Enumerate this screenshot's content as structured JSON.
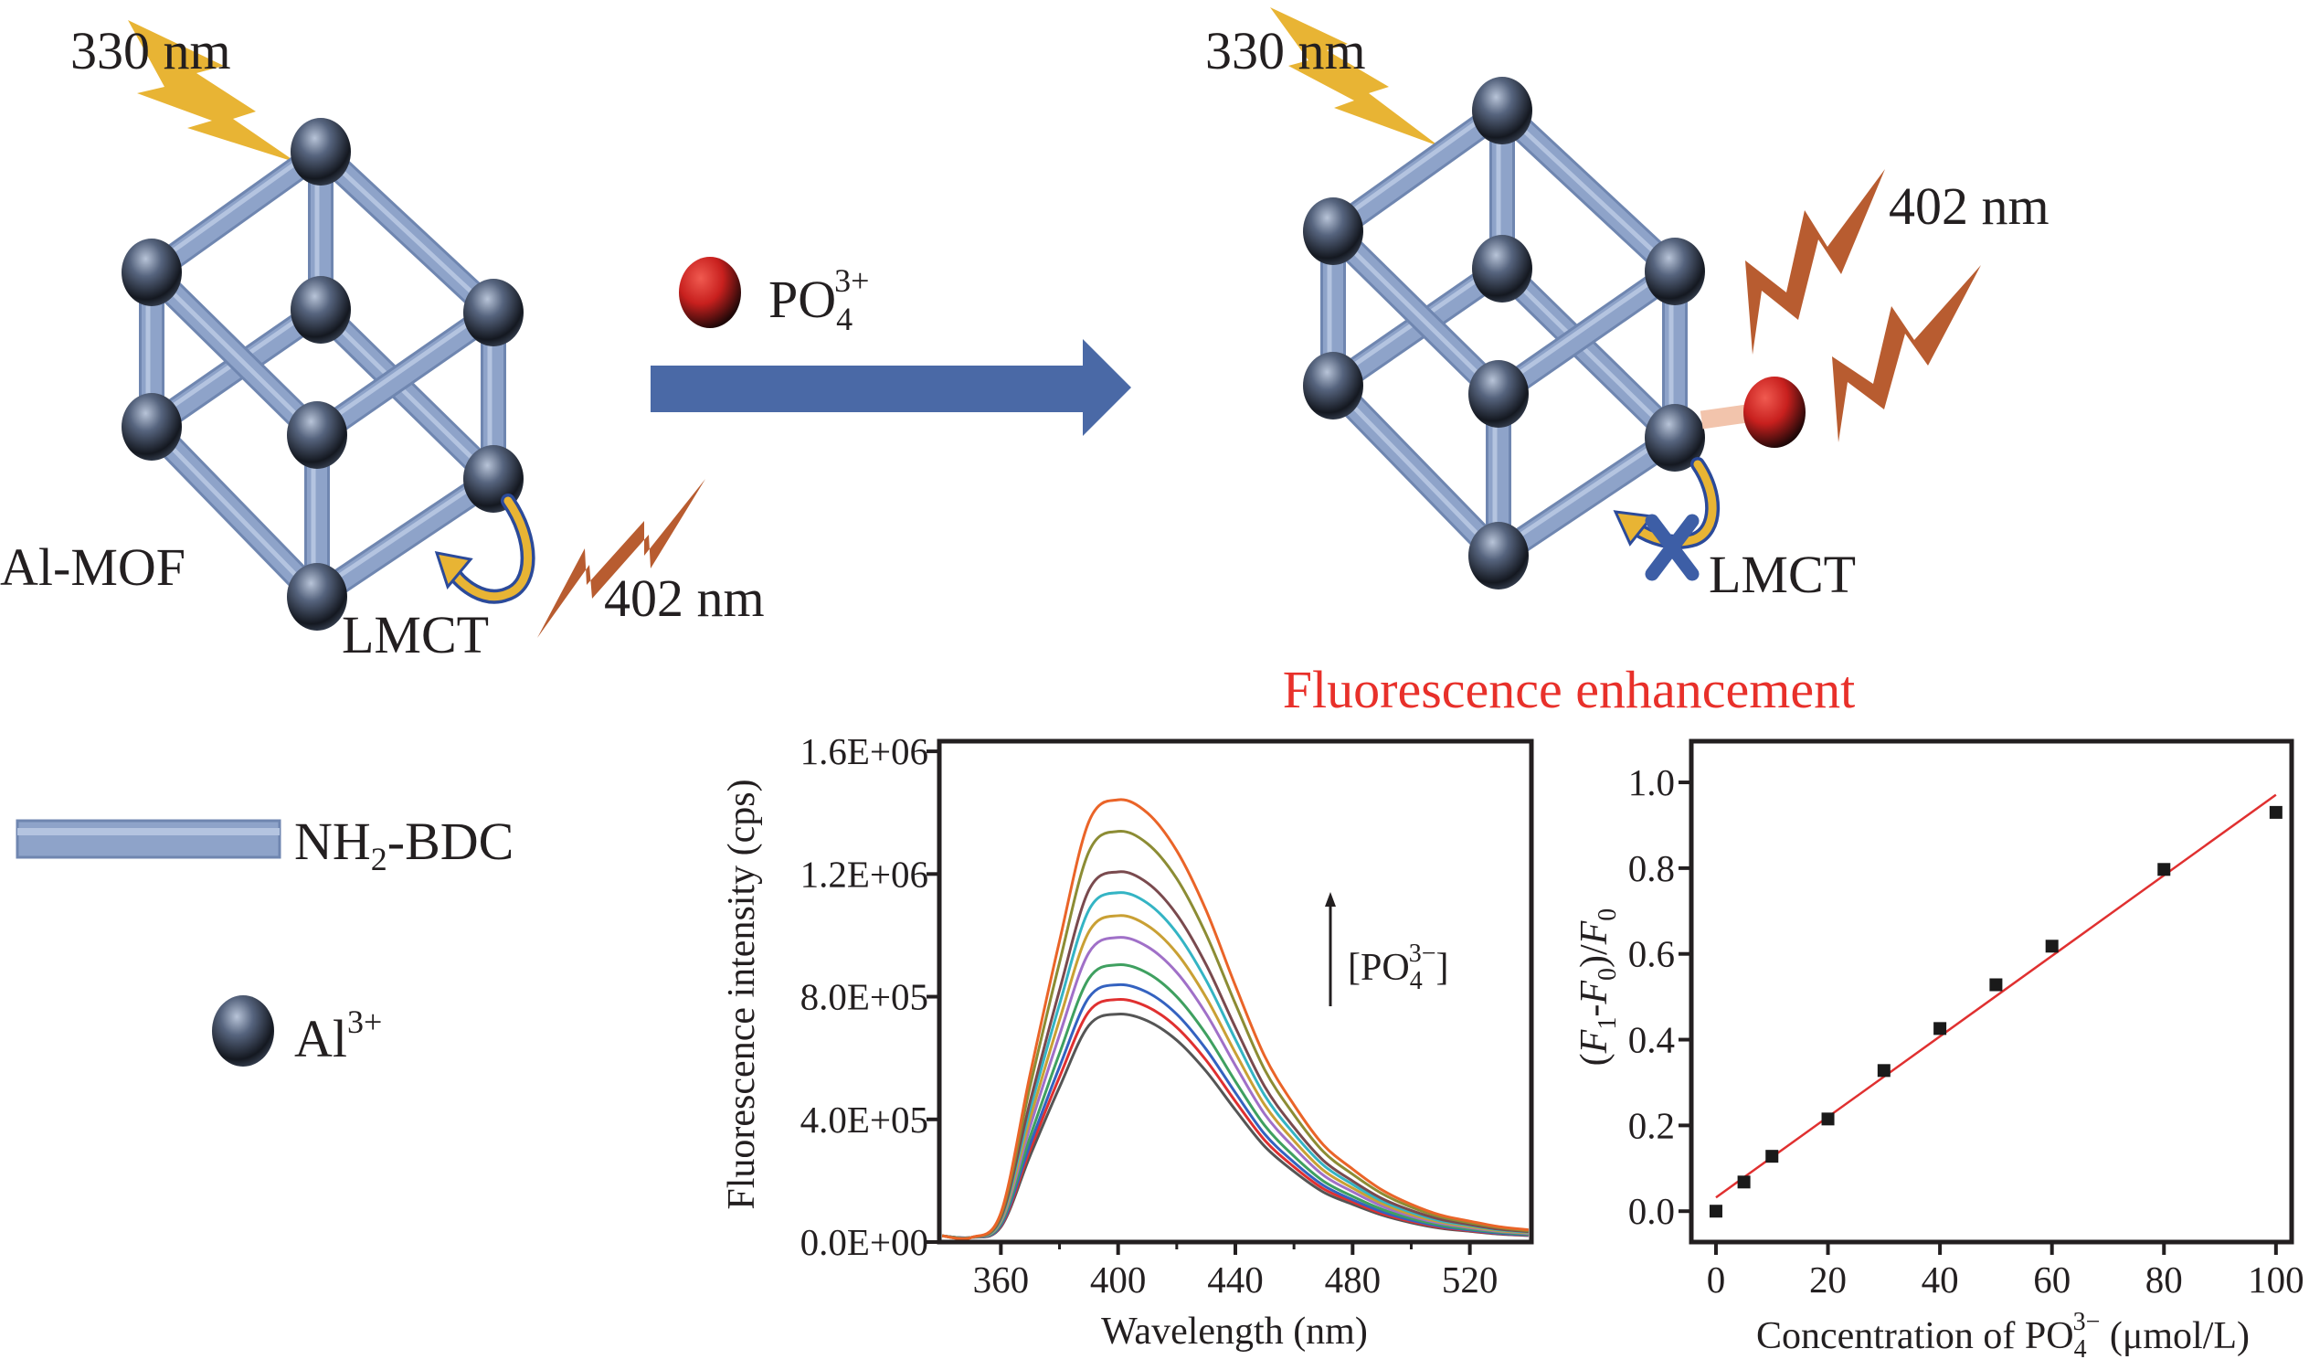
{
  "diagram": {
    "left": {
      "excitation": "330 nm",
      "emission": "402 nm",
      "mof_label": "Al-MOF",
      "lmct": "LMCT"
    },
    "reagent": {
      "base": "PO",
      "sub": "4",
      "sup": "3+"
    },
    "right": {
      "excitation": "330 nm",
      "emission": "402 nm",
      "lmct": "LMCT"
    },
    "enhancement": "Fluorescence enhancement",
    "legend": {
      "linker": {
        "base": "NH",
        "sub": "2",
        "rest": "-BDC"
      },
      "metal": {
        "base": "Al",
        "sup": "3+"
      }
    },
    "colors": {
      "rod": "#8ea3c9",
      "excitation_bolt": "#e8b434",
      "emission_bolt": "#b85c30",
      "process_arrow": "#4a69a6",
      "enhancement_text": "#e8302a",
      "phosphate_sphere": "#c8201e",
      "blocked_mark": "#3d5ea6"
    }
  },
  "chart_data": [
    {
      "type": "line",
      "xlabel": "Wavelength (nm)",
      "ylabel": "Fluorescence intensity (cps)",
      "xlim": [
        339,
        541
      ],
      "ylim": [
        0,
        1633000
      ],
      "xticks": [
        360,
        400,
        440,
        480,
        520
      ],
      "xtick_labels": [
        "360",
        "400",
        "440",
        "480",
        "520"
      ],
      "yticks": [
        0,
        400000,
        800000,
        1200000,
        1600000
      ],
      "ytick_labels": [
        "0.0E+00",
        "4.0E+05",
        "8.0E+05",
        "1.2E+06",
        "1.6E+06"
      ],
      "grid": false,
      "annotation": {
        "open": "[PO",
        "sub": "4",
        "sup": "3−",
        "close": "]",
        "direction": "up"
      },
      "x": [
        340,
        350,
        360,
        370,
        380,
        390,
        400,
        410,
        420,
        430,
        440,
        450,
        460,
        470,
        480,
        490,
        500,
        510,
        520,
        530,
        540
      ],
      "series": [
        {
          "color": "#555555",
          "values": [
            20000,
            15000,
            49000,
            282000,
            505000,
            706000,
            743000,
            721000,
            658000,
            557000,
            431000,
            312000,
            230000,
            163000,
            123000,
            88000,
            63000,
            45000,
            35000,
            26000,
            21000
          ]
        },
        {
          "color": "#e03030",
          "values": [
            20000,
            15000,
            52000,
            301000,
            538000,
            751000,
            791000,
            767000,
            700000,
            593000,
            459000,
            332000,
            245000,
            174000,
            131000,
            93000,
            67000,
            48000,
            37000,
            28000,
            22000
          ]
        },
        {
          "color": "#3462c0",
          "values": [
            20000,
            15000,
            55000,
            319000,
            571000,
            797000,
            839000,
            814000,
            743000,
            629000,
            487000,
            352000,
            260000,
            185000,
            138000,
            99000,
            71000,
            51000,
            39000,
            29000,
            23000
          ]
        },
        {
          "color": "#3fa060",
          "values": [
            20000,
            15000,
            60000,
            344000,
            615000,
            859000,
            904000,
            877000,
            800000,
            678000,
            524000,
            380000,
            280000,
            199000,
            149000,
            107000,
            77000,
            55000,
            42000,
            32000,
            25000
          ]
        },
        {
          "color": "#a070c8",
          "values": [
            20000,
            15000,
            66000,
            377000,
            675000,
            943000,
            993000,
            963000,
            879000,
            745000,
            576000,
            417000,
            308000,
            218000,
            164000,
            117000,
            84000,
            61000,
            47000,
            35000,
            28000
          ]
        },
        {
          "color": "#c9a034",
          "values": [
            20000,
            15000,
            70000,
            404000,
            724000,
            1011000,
            1064000,
            1032000,
            942000,
            798000,
            617000,
            447000,
            330000,
            234000,
            176000,
            126000,
            90000,
            65000,
            50000,
            37000,
            30000
          ]
        },
        {
          "color": "#34b4c4",
          "values": [
            20000,
            15000,
            75000,
            433000,
            775000,
            1082000,
            1139000,
            1105000,
            1008000,
            854000,
            661000,
            478000,
            353000,
            251000,
            188000,
            134000,
            97000,
            69000,
            54000,
            40000,
            32000
          ]
        },
        {
          "color": "#7a4a4e",
          "values": [
            20000,
            15000,
            80000,
            459000,
            821000,
            1147000,
            1207000,
            1171000,
            1068000,
            905000,
            700000,
            507000,
            374000,
            266000,
            199000,
            142000,
            103000,
            74000,
            57000,
            42000,
            34000
          ]
        },
        {
          "color": "#8c8c34",
          "values": [
            20000,
            15000,
            88000,
            509000,
            911000,
            1272000,
            1339000,
            1299000,
            1185000,
            1004000,
            777000,
            562000,
            415000,
            295000,
            221000,
            158000,
            114000,
            82000,
            63000,
            47000,
            37000
          ]
        },
        {
          "color": "#ea6428",
          "values": [
            20000,
            15000,
            95000,
            548000,
            981000,
            1370000,
            1442000,
            1399000,
            1276000,
            1082000,
            836000,
            606000,
            447000,
            317000,
            238000,
            170000,
            123000,
            88000,
            68000,
            50000,
            40000
          ]
        }
      ]
    },
    {
      "type": "scatter",
      "xlabel": {
        "text": "Concentration of PO",
        "sub": "4",
        "sup": "3−",
        "unit": " (μmol/L)"
      },
      "ylabel": {
        "parts": [
          "(",
          "F",
          "1",
          "-",
          "F",
          "0",
          ")/",
          "F",
          "0"
        ]
      },
      "xlim": [
        -4.4,
        102.8
      ],
      "ylim": [
        -0.072,
        1.096
      ],
      "xticks": [
        0,
        20,
        40,
        60,
        80,
        100
      ],
      "xtick_labels": [
        "0",
        "20",
        "40",
        "60",
        "80",
        "100"
      ],
      "yticks": [
        0,
        0.2,
        0.4,
        0.6,
        0.8,
        1.0
      ],
      "ytick_labels": [
        "0.0",
        "0.2",
        "0.4",
        "0.6",
        "0.8",
        "1.0"
      ],
      "grid": false,
      "x": [
        0,
        5,
        10,
        20,
        30,
        40,
        50,
        60,
        80,
        100
      ],
      "y": [
        0.0,
        0.068,
        0.128,
        0.215,
        0.328,
        0.426,
        0.528,
        0.618,
        0.797,
        0.93
      ],
      "marker_color": "#1a1a1a",
      "fit_line": {
        "color": "#e03030",
        "points": [
          [
            0,
            0.032
          ],
          [
            100,
            0.971
          ]
        ]
      }
    }
  ]
}
